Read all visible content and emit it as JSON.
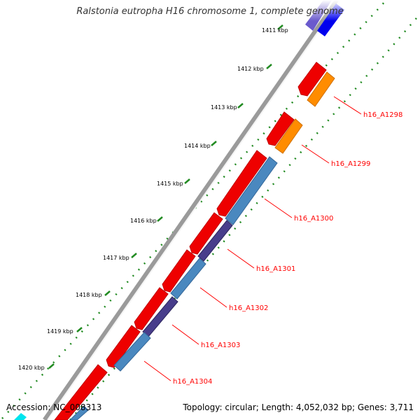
{
  "title": "Ralstonia eutropha H16 chromosome 1, complete genome",
  "footer": {
    "accession": "Accession: NC_008313",
    "summary": "Topology: circular; Length: 4,052,032 bp; Genes: 3,711"
  },
  "kbp_labels": [
    "1411 kbp",
    "1412 kbp",
    "1413 kbp",
    "1414 kbp",
    "1415 kbp",
    "1416 kbp",
    "1417 kbp",
    "1418 kbp",
    "1419 kbp",
    "1420 kbp"
  ],
  "gene_labels": [
    "h16_A1298",
    "h16_A1299",
    "h16_A1300",
    "h16_A1301",
    "h16_A1302",
    "h16_A1303",
    "h16_A1304"
  ],
  "colors": {
    "backbone": "#8a8a8a",
    "forward_gene": "#ee0000",
    "reverse_orange": "#ff8c00",
    "reverse_steelblue": "#4a88bf",
    "reverse_slate": "#483d8b",
    "blue_gene": "#0000ee",
    "cyan_gene": "#00e5ee",
    "tick_dots": "#228b22",
    "label_text": "#ff0000"
  }
}
